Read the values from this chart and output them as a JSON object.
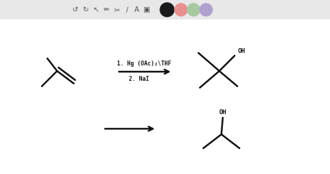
{
  "bg_color": "#ffffff",
  "toolbar_color": "#e8e8e8",
  "icon_color": "#555555",
  "circle_colors": [
    "#1a1a1a",
    "#e89090",
    "#a8c8a0",
    "#b0a0d0"
  ],
  "line_color": "#111111",
  "line_width": 1.8,
  "reagent_text": "1. Hg (OAc)₂\\THF",
  "reagent2_text": "2. NaI",
  "oh_text": "OH",
  "dh_text": "OH"
}
